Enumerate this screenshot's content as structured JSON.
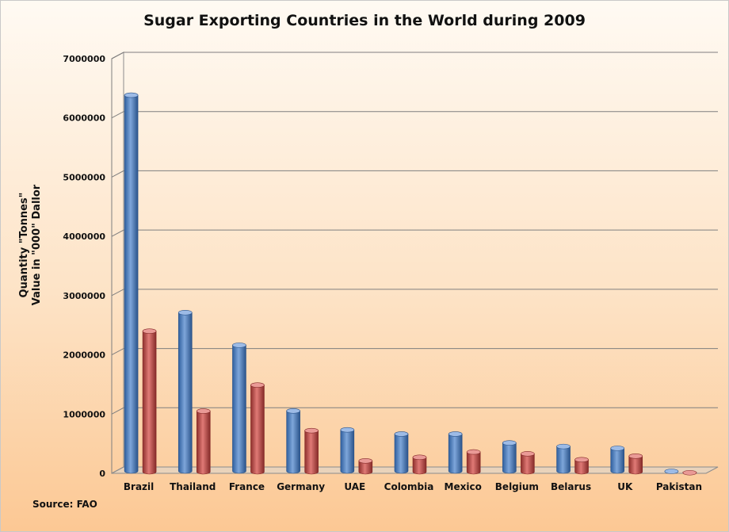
{
  "chart_data": {
    "type": "bar",
    "title": "Sugar Exporting Countries in the World during 2009",
    "ylabel_line1": "Quantity \"Tonnes\"",
    "ylabel_line2": "Value in \"000\" Dallor",
    "source": "Source: FAO",
    "categories": [
      "Brazil",
      "Thailand",
      "France",
      "Germany",
      "UAE",
      "Colombia",
      "Mexico",
      "Belgium",
      "Belarus",
      "UK",
      "Pakistan"
    ],
    "series": [
      {
        "values": [
          6370000,
          2700000,
          2150000,
          1040000,
          720000,
          650000,
          650000,
          500000,
          440000,
          410000,
          20000
        ],
        "color": "#4f81bd"
      },
      {
        "values": [
          2400000,
          1050000,
          1490000,
          720000,
          210000,
          270000,
          360000,
          330000,
          230000,
          290000,
          10000
        ],
        "color": "#c0504d"
      }
    ],
    "ylim": [
      0,
      7000000
    ],
    "yticks": [
      "0",
      "1000000",
      "2000000",
      "3000000",
      "4000000",
      "5000000",
      "6000000",
      "7000000"
    ],
    "grid": true,
    "legend": "none"
  }
}
